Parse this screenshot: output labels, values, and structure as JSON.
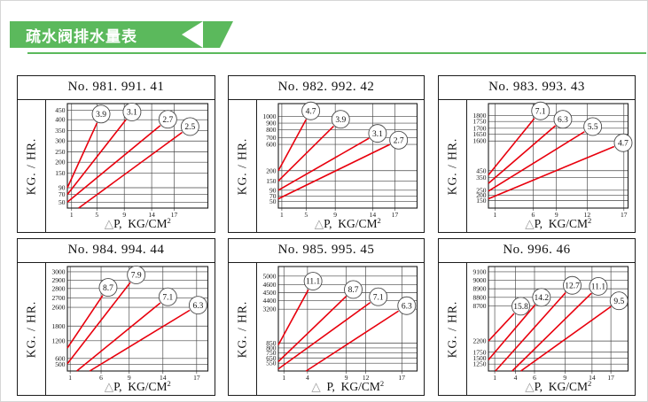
{
  "header": {
    "title": "疏水阀排水量表",
    "banner_color": "#5bb95c",
    "underline_color": "#5bb95c"
  },
  "chart_style": {
    "line_color": "#e8000d",
    "grid_color": "#454545",
    "border_color": "#1c1c1c",
    "circle_fill": "#ffffff",
    "circle_stroke": "#4a4a4a",
    "triangle_color": "#9a9a9a",
    "text_color": "#111111"
  },
  "chart_data": [
    {
      "type": "line",
      "title": "No. 981.  991.  41",
      "ylabel": "KG. / HR.",
      "xlabel": {
        "tri": "△",
        "text": "P,  KG/CM",
        "sup": "2"
      },
      "y_ticks": [
        {
          "label": "450",
          "pos": 0.935
        },
        {
          "label": "400",
          "pos": 0.846
        },
        {
          "label": "350",
          "pos": 0.74
        },
        {
          "label": "300",
          "pos": 0.642
        },
        {
          "label": "250",
          "pos": 0.537
        },
        {
          "label": "200",
          "pos": 0.439
        },
        {
          "label": "150",
          "pos": 0.333
        },
        {
          "label": "90",
          "pos": 0.195
        },
        {
          "label": "70",
          "pos": 0.13
        },
        {
          "label": "50",
          "pos": 0.057
        }
      ],
      "x_ticks": [
        {
          "label": "1",
          "pos": 0.03
        },
        {
          "label": "5",
          "pos": 0.21
        },
        {
          "label": "9",
          "pos": 0.405
        },
        {
          "label": "14",
          "pos": 0.6
        },
        {
          "label": "17",
          "pos": 0.76
        }
      ],
      "series": [
        {
          "name": "3.9",
          "start": [
            0,
            0.195
          ],
          "end": [
            0.24,
            0.9
          ]
        },
        {
          "name": "3.1",
          "start": [
            0,
            0.13
          ],
          "end": [
            0.46,
            0.92
          ]
        },
        {
          "name": "2.7",
          "start": [
            0,
            0.057
          ],
          "end": [
            0.715,
            0.85
          ]
        },
        {
          "name": "2.5",
          "start": [
            0.08,
            0
          ],
          "end": [
            0.873,
            0.78
          ]
        }
      ]
    },
    {
      "type": "line",
      "title": "No. 982.  992.  42",
      "ylabel": "KG. / HR.",
      "xlabel": {
        "tri": "△",
        "text": "P,  KG/CM",
        "sup": "2"
      },
      "y_ticks": [
        {
          "label": "1000",
          "pos": 0.878
        },
        {
          "label": "900",
          "pos": 0.813
        },
        {
          "label": "800",
          "pos": 0.748
        },
        {
          "label": "700",
          "pos": 0.675
        },
        {
          "label": "600",
          "pos": 0.61
        },
        {
          "label": "200",
          "pos": 0.358
        },
        {
          "label": "150",
          "pos": 0.26
        },
        {
          "label": "90",
          "pos": 0.171
        },
        {
          "label": "70",
          "pos": 0.114
        },
        {
          "label": "50",
          "pos": 0.065
        }
      ],
      "x_ticks": [
        {
          "label": "1",
          "pos": 0.025
        },
        {
          "label": "5",
          "pos": 0.2
        },
        {
          "label": "9",
          "pos": 0.41
        },
        {
          "label": "14",
          "pos": 0.68
        },
        {
          "label": "17",
          "pos": 0.84
        }
      ],
      "series": [
        {
          "name": "4.7",
          "start": [
            0,
            0.358
          ],
          "end": [
            0.234,
            0.93
          ]
        },
        {
          "name": "3.9",
          "start": [
            0,
            0.26
          ],
          "end": [
            0.449,
            0.85
          ]
        },
        {
          "name": "3.1",
          "start": [
            0,
            0.171
          ],
          "end": [
            0.715,
            0.715
          ]
        },
        {
          "name": "2.7",
          "start": [
            0,
            0.089
          ],
          "end": [
            0.867,
            0.65
          ]
        }
      ]
    },
    {
      "type": "line",
      "title": "No. 983.  993.  43",
      "ylabel": "KG. / HR.",
      "xlabel": {
        "tri": "△",
        "text": "P,  KG/CM",
        "sup": "2"
      },
      "y_ticks": [
        {
          "label": "1800",
          "pos": 0.886
        },
        {
          "label": "1750",
          "pos": 0.829
        },
        {
          "label": "1700",
          "pos": 0.764
        },
        {
          "label": "1650",
          "pos": 0.707
        },
        {
          "label": "1600",
          "pos": 0.642
        },
        {
          "label": "450",
          "pos": 0.358
        },
        {
          "label": "350",
          "pos": 0.293
        },
        {
          "label": "250",
          "pos": 0.171
        },
        {
          "label": "200",
          "pos": 0.122
        },
        {
          "label": "150",
          "pos": 0.073
        }
      ],
      "x_ticks": [
        {
          "label": "1",
          "pos": 0.047
        },
        {
          "label": "6",
          "pos": 0.32
        },
        {
          "label": "9",
          "pos": 0.487
        },
        {
          "label": "12",
          "pos": 0.707
        },
        {
          "label": "17",
          "pos": 0.97
        }
      ],
      "series": [
        {
          "name": "7.1",
          "start": [
            0,
            0.317
          ],
          "end": [
            0.373,
            0.93
          ]
        },
        {
          "name": "6.3",
          "start": [
            0,
            0.236
          ],
          "end": [
            0.533,
            0.85
          ]
        },
        {
          "name": "5.5",
          "start": [
            0,
            0.163
          ],
          "end": [
            0.747,
            0.78
          ]
        },
        {
          "name": "4.7",
          "start": [
            0,
            0.089
          ],
          "end": [
            0.965,
            0.625
          ]
        }
      ]
    },
    {
      "type": "line",
      "title": "No. 984.  994.  44",
      "ylabel": "KG. / HR.",
      "xlabel": {
        "tri": "△",
        "text": "P,  KG/CM",
        "sup": "2"
      },
      "y_ticks": [
        {
          "label": "3000",
          "pos": 0.95
        },
        {
          "label": "2900",
          "pos": 0.87
        },
        {
          "label": "2800",
          "pos": 0.79
        },
        {
          "label": "2700",
          "pos": 0.7
        },
        {
          "label": "2600",
          "pos": 0.61
        },
        {
          "label": "1800",
          "pos": 0.43
        },
        {
          "label": "1200",
          "pos": 0.29
        },
        {
          "label": "600",
          "pos": 0.12
        },
        {
          "label": "500",
          "pos": 0.065
        }
      ],
      "x_ticks": [
        {
          "label": "1",
          "pos": 0.02
        },
        {
          "label": "6",
          "pos": 0.24
        },
        {
          "label": "9",
          "pos": 0.44
        },
        {
          "label": "14",
          "pos": 0.68
        },
        {
          "label": "17",
          "pos": 0.92
        }
      ],
      "series": [
        {
          "name": "8.7",
          "start": [
            0,
            0.22
          ],
          "end": [
            0.29,
            0.8
          ]
        },
        {
          "name": "7.9",
          "start": [
            0,
            0.07
          ],
          "end": [
            0.49,
            0.92
          ]
        },
        {
          "name": "7.1",
          "start": [
            0.067,
            0
          ],
          "end": [
            0.715,
            0.71
          ]
        },
        {
          "name": "6.3",
          "start": [
            0.159,
            0
          ],
          "end": [
            0.93,
            0.63
          ]
        }
      ]
    },
    {
      "type": "line",
      "title": "No. 985.  995.  45",
      "ylabel": "KG. / HR.",
      "xlabel": {
        "tri": "△",
        "text": "  P,  KG/CM",
        "sup": "2"
      },
      "y_ticks": [
        {
          "label": "5000",
          "pos": 0.908
        },
        {
          "label": "4600",
          "pos": 0.825
        },
        {
          "label": "4500",
          "pos": 0.75
        },
        {
          "label": "4400",
          "pos": 0.675
        },
        {
          "label": "3200",
          "pos": 0.592
        },
        {
          "label": "850",
          "pos": 0.267
        },
        {
          "label": "800",
          "pos": 0.221
        },
        {
          "label": "750",
          "pos": 0.175
        },
        {
          "label": "650",
          "pos": 0.125
        },
        {
          "label": "550",
          "pos": 0.075
        }
      ],
      "x_ticks": [
        {
          "label": "1",
          "pos": 0.04
        },
        {
          "label": "4",
          "pos": 0.21
        },
        {
          "label": "9",
          "pos": 0.49
        },
        {
          "label": "12",
          "pos": 0.63
        },
        {
          "label": "17",
          "pos": 0.89
        }
      ],
      "series": [
        {
          "name": "11.1",
          "start": [
            0,
            0.25
          ],
          "end": [
            0.25,
            0.86
          ]
        },
        {
          "name": "8.7",
          "start": [
            0,
            0.09
          ],
          "end": [
            0.54,
            0.78
          ]
        },
        {
          "name": "7.1",
          "start": [
            0,
            0.02
          ],
          "end": [
            0.72,
            0.71
          ]
        },
        {
          "name": "6.3",
          "start": [
            0.2,
            0
          ],
          "end": [
            0.925,
            0.625
          ]
        }
      ]
    },
    {
      "type": "line",
      "title": "No. 996.  46",
      "ylabel": "KG. / HR.",
      "xlabel": {
        "tri": "△",
        "text": "P,  KG/CM",
        "sup": "2"
      },
      "y_ticks": [
        {
          "label": "9100",
          "pos": 0.95
        },
        {
          "label": "9000",
          "pos": 0.87
        },
        {
          "label": "8900",
          "pos": 0.787
        },
        {
          "label": "8800",
          "pos": 0.705
        },
        {
          "label": "8700",
          "pos": 0.623
        },
        {
          "label": "2200",
          "pos": 0.287
        },
        {
          "label": "1750",
          "pos": 0.18
        },
        {
          "label": "1500",
          "pos": 0.123
        },
        {
          "label": "1250",
          "pos": 0.066
        }
      ],
      "x_ticks": [
        {
          "label": "1",
          "pos": 0.045
        },
        {
          "label": "4",
          "pos": 0.194
        },
        {
          "label": "6",
          "pos": 0.33
        },
        {
          "label": "9",
          "pos": 0.548
        },
        {
          "label": "14",
          "pos": 0.742
        },
        {
          "label": "17",
          "pos": 0.877
        }
      ],
      "series": [
        {
          "name": "15.8",
          "start": [
            0,
            0.287
          ],
          "end": [
            0.232,
            0.62
          ]
        },
        {
          "name": "14.2",
          "start": [
            0,
            0.107
          ],
          "end": [
            0.38,
            0.705
          ]
        },
        {
          "name": "12.7",
          "start": [
            0.05,
            0
          ],
          "end": [
            0.6,
            0.82
          ]
        },
        {
          "name": "11.1",
          "start": [
            0.17,
            0
          ],
          "end": [
            0.787,
            0.81
          ]
        },
        {
          "name": "9.5",
          "start": [
            0.232,
            0
          ],
          "end": [
            0.935,
            0.672
          ]
        }
      ]
    }
  ]
}
